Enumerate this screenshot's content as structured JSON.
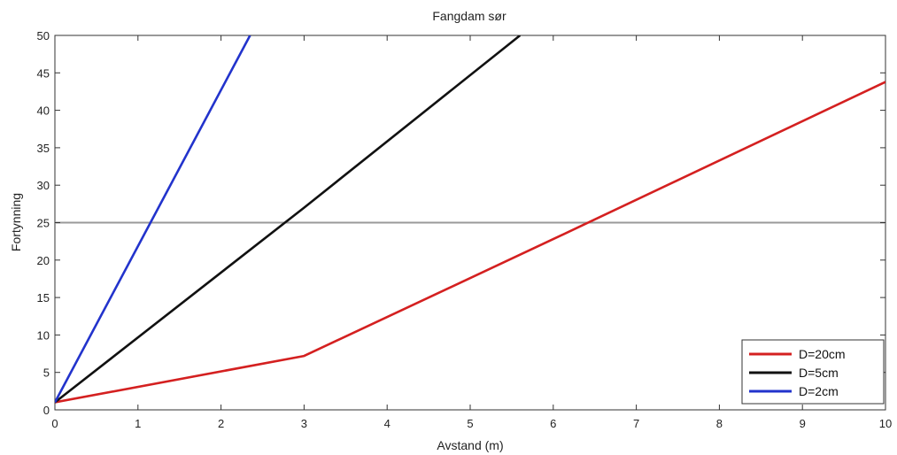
{
  "chart_data": {
    "type": "line",
    "title": "Fangdam sør",
    "xlabel": "Avstand (m)",
    "ylabel": "Fortynning",
    "xlim": [
      0,
      10
    ],
    "ylim": [
      0,
      50
    ],
    "xticks": [
      0,
      1,
      2,
      3,
      4,
      5,
      6,
      7,
      8,
      9,
      10
    ],
    "yticks": [
      0,
      5,
      10,
      15,
      20,
      25,
      30,
      35,
      40,
      45,
      50
    ],
    "grid": false,
    "legend_position": "bottom-right",
    "reference_line": {
      "y": 25,
      "color": "#9a9a9a"
    },
    "series": [
      {
        "name": "D=20cm",
        "color": "#d42020",
        "points": [
          [
            0,
            1.0
          ],
          [
            3,
            7.2
          ],
          [
            6,
            22.8
          ],
          [
            10,
            43.8
          ]
        ]
      },
      {
        "name": "D=5cm",
        "color": "#111111",
        "points": [
          [
            0,
            1.0
          ],
          [
            3,
            27.0
          ],
          [
            5.6,
            50
          ]
        ]
      },
      {
        "name": "D=2cm",
        "color": "#2233cc",
        "points": [
          [
            0,
            1.0
          ],
          [
            2.35,
            50
          ]
        ]
      }
    ]
  }
}
